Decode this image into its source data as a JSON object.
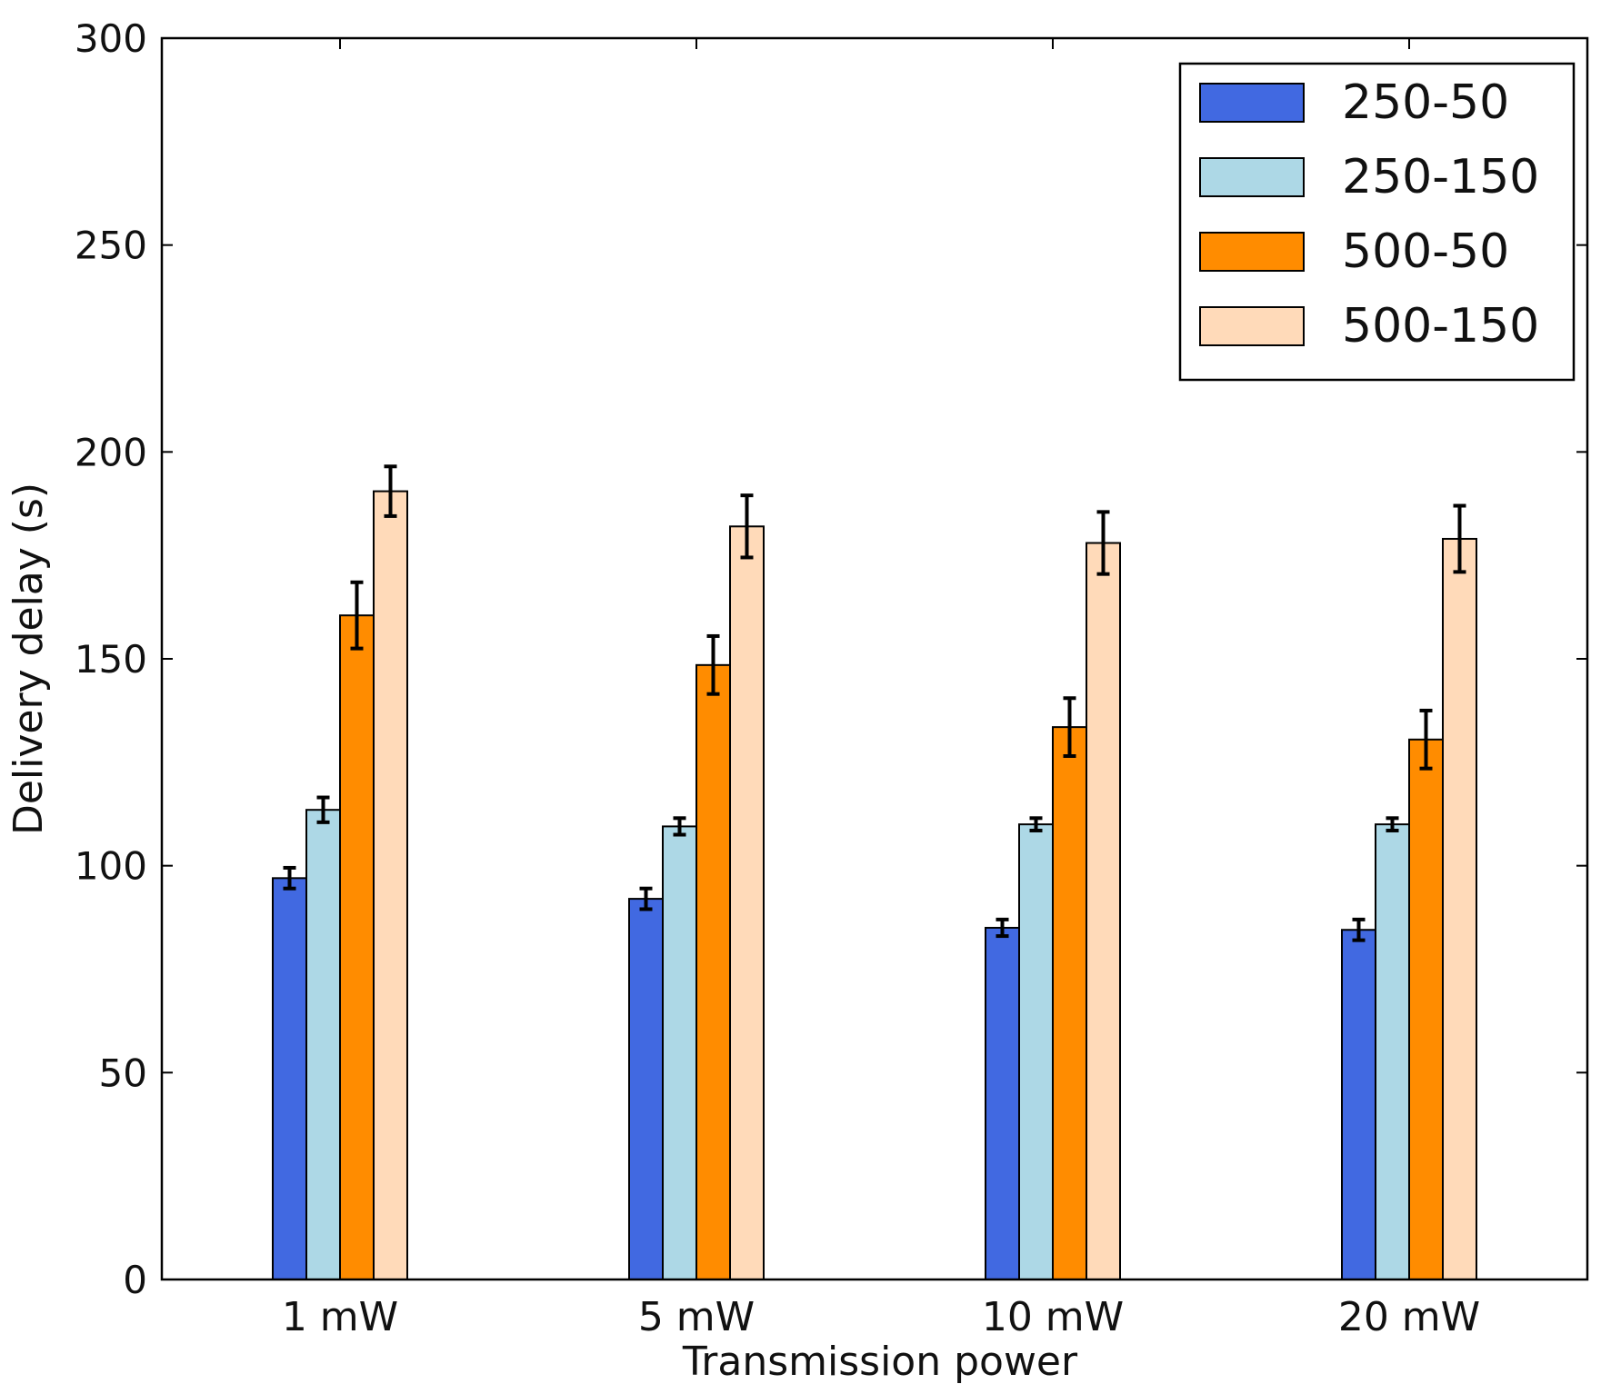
{
  "chart_data": {
    "type": "bar",
    "title": "",
    "xlabel": "Transmission power",
    "ylabel": "Delivery delay (s)",
    "categories": [
      "1 mW",
      "5 mW",
      "10 mW",
      "20 mW"
    ],
    "ylim": [
      0,
      300
    ],
    "yticks": [
      0,
      50,
      100,
      150,
      200,
      250,
      300
    ],
    "ytick_labels": [
      "0",
      "50",
      "100",
      "150",
      "200",
      "250",
      "300"
    ],
    "grid": false,
    "legend_position": "top-right",
    "series": [
      {
        "name": "250-50",
        "color": "#4169e1",
        "values": [
          97,
          92,
          85,
          84.5
        ],
        "errors": [
          2.5,
          2.5,
          2,
          2.5
        ]
      },
      {
        "name": "250-150",
        "color": "#add8e6",
        "values": [
          113.5,
          109.5,
          110,
          110
        ],
        "errors": [
          3,
          2,
          1.5,
          1.5
        ]
      },
      {
        "name": "500-50",
        "color": "#ff8c00",
        "values": [
          160.5,
          148.5,
          133.5,
          130.5
        ],
        "errors": [
          8,
          7,
          7,
          7
        ]
      },
      {
        "name": "500-150",
        "color": "#ffdab9",
        "values": [
          190.5,
          182,
          178,
          179
        ],
        "errors": [
          6,
          7.5,
          7.5,
          8
        ]
      }
    ]
  }
}
